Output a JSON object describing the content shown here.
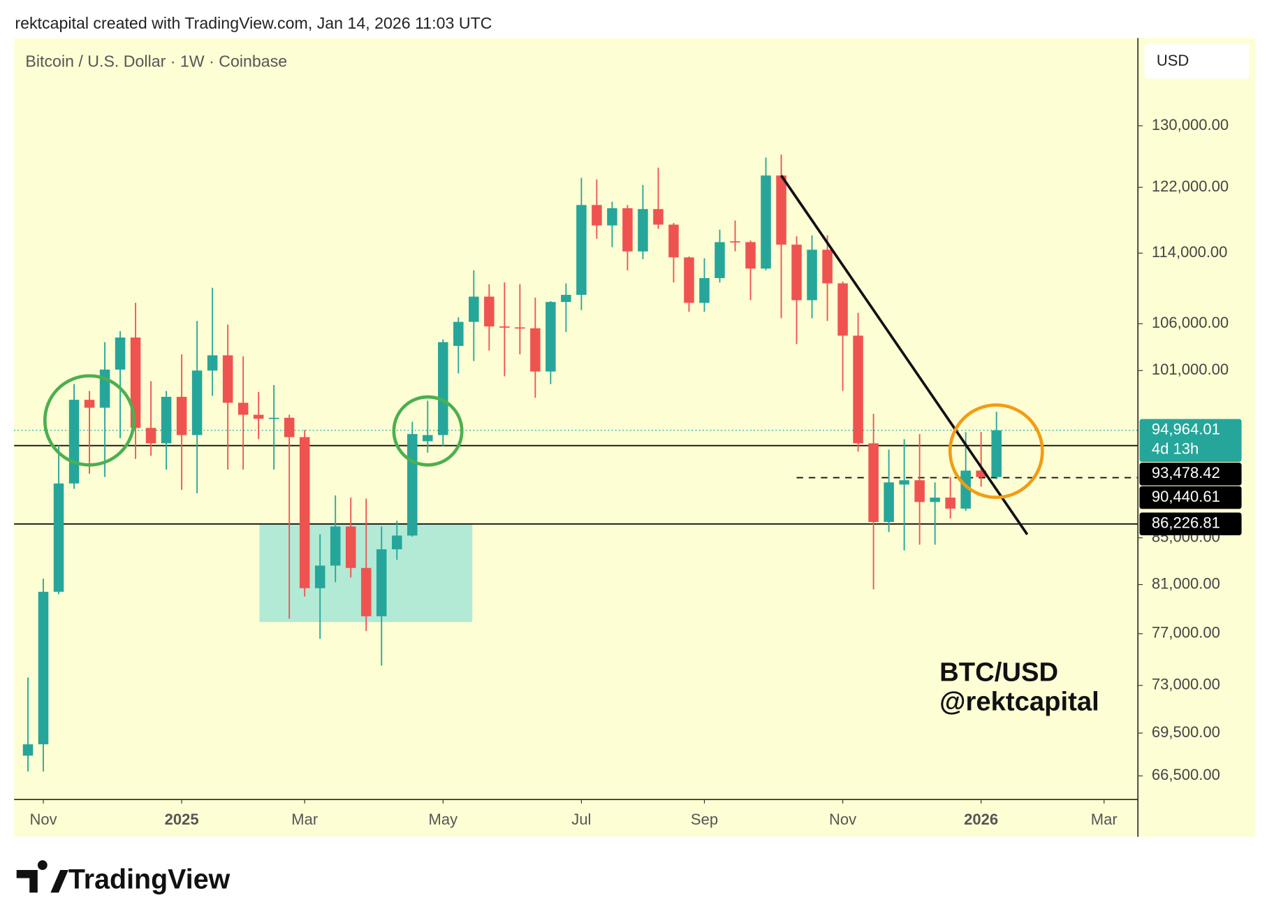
{
  "header": "rektcapital created with TradingView.com, Jan 14, 2026 11:03 UTC",
  "footer_logo": "TradingView",
  "chart_data": {
    "type": "candlestick",
    "title": "Bitcoin / U.S. Dollar · 1W · Coinbase",
    "currency": "USD",
    "annotation": [
      "BTC/USD",
      "@rektcapital"
    ],
    "up_color": "#26a69a",
    "down_color": "#ef5350",
    "log_scale": true,
    "xlim": [
      -0.9,
      72.2
    ],
    "ylim": [
      64900,
      142300
    ],
    "xticks": [
      {
        "value": 1,
        "label": "Nov"
      },
      {
        "value": 10,
        "label": "2025"
      },
      {
        "value": 18,
        "label": "Mar"
      },
      {
        "value": 27,
        "label": "May"
      },
      {
        "value": 36,
        "label": "Jul"
      },
      {
        "value": 44,
        "label": "Sep"
      },
      {
        "value": 53,
        "label": "Nov"
      },
      {
        "value": 62,
        "label": "2026"
      },
      {
        "value": 70,
        "label": "Mar"
      }
    ],
    "yticks": [
      {
        "value": 66500,
        "label": "66,500.00"
      },
      {
        "value": 69500,
        "label": "69,500.00"
      },
      {
        "value": 73000,
        "label": "73,000.00"
      },
      {
        "value": 77000,
        "label": "77,000.00"
      },
      {
        "value": 81000,
        "label": "81,000.00"
      },
      {
        "value": 85000,
        "label": "85,000.00"
      },
      {
        "value": 101000,
        "label": "101,000.00"
      },
      {
        "value": 106000,
        "label": "106,000.00"
      },
      {
        "value": 114000,
        "label": "114,000.00"
      },
      {
        "value": 122000,
        "label": "122,000.00"
      },
      {
        "value": 130000,
        "label": "130,000.00"
      }
    ],
    "candles": {
      "open": [
        67900,
        68700,
        80400,
        89900,
        98000,
        97200,
        101100,
        104500,
        95200,
        93700,
        98300,
        94500,
        101000,
        102600,
        97700,
        96500,
        96100,
        96200,
        94300,
        80700,
        82600,
        86000,
        82400,
        78400,
        84000,
        85200,
        93900,
        94500,
        103600,
        106200,
        109000,
        105700,
        105600,
        105500,
        100900,
        108400,
        109200,
        119800,
        117300,
        119400,
        114200,
        119300,
        117400,
        113500,
        108300,
        111100,
        115400,
        115300,
        112200,
        123500,
        115000,
        108600,
        114400,
        110500,
        104700,
        93700,
        86400,
        89800,
        90200,
        88200,
        88600,
        87600,
        91100,
        90500
      ],
      "high": [
        73600,
        81500,
        93500,
        99600,
        98900,
        104000,
        105200,
        108300,
        99900,
        98900,
        102700,
        106300,
        110000,
        105900,
        102500,
        98800,
        99500,
        96500,
        95000,
        85300,
        88800,
        88600,
        88500,
        86000,
        86500,
        95800,
        97900,
        104300,
        106700,
        112000,
        110400,
        110600,
        110400,
        108900,
        108500,
        110500,
        123200,
        123000,
        120200,
        119800,
        122300,
        124500,
        117600,
        113600,
        113400,
        116800,
        117900,
        115500,
        125800,
        126200,
        116000,
        116100,
        116100,
        110700,
        107200,
        96600,
        93100,
        94100,
        94600,
        90000,
        90500,
        94800,
        94800,
        96800
      ],
      "low": [
        66800,
        66800,
        80200,
        89400,
        90800,
        90500,
        94200,
        92200,
        92500,
        91200,
        89300,
        89000,
        98400,
        91200,
        91200,
        94100,
        91200,
        78200,
        80000,
        76600,
        81200,
        81600,
        77200,
        74500,
        83100,
        85100,
        92800,
        93400,
        100700,
        102000,
        103100,
        100400,
        102700,
        98200,
        99600,
        105100,
        107500,
        115700,
        114700,
        112000,
        113300,
        116900,
        110600,
        107300,
        107300,
        110600,
        114200,
        108600,
        112000,
        106600,
        103800,
        106600,
        106300,
        98900,
        92900,
        80600,
        85500,
        83900,
        84400,
        84400,
        86700,
        87400,
        89600,
        90300
      ],
      "close": [
        68700,
        80400,
        89900,
        98000,
        97200,
        101100,
        104500,
        95200,
        93700,
        98300,
        94500,
        101000,
        102600,
        97700,
        96500,
        96100,
        96200,
        94300,
        80700,
        82600,
        86000,
        82400,
        78400,
        84000,
        85200,
        94600,
        94500,
        104000,
        106200,
        109000,
        105700,
        105600,
        105500,
        100900,
        108400,
        109200,
        119800,
        117300,
        119400,
        114200,
        119300,
        117400,
        113500,
        108300,
        111100,
        115300,
        115300,
        112200,
        123500,
        115000,
        108600,
        114400,
        110500,
        104700,
        93700,
        86400,
        90000,
        90200,
        88200,
        88600,
        87600,
        91100,
        90500,
        94964.01
      ]
    },
    "current_price": {
      "value": 94964.01,
      "label": "94,964.01",
      "countdown": "4d 13h"
    },
    "price_lines": [
      {
        "value": 93478.42,
        "label": "93,478.42",
        "style": "solid"
      },
      {
        "value": 90440.61,
        "label": "90,440.61",
        "style": "dashed",
        "from_index": 50
      },
      {
        "value": 86226.81,
        "label": "86,226.81",
        "style": "solid"
      }
    ],
    "trendline": {
      "x": [
        49,
        65
      ],
      "y": [
        123500,
        85300
      ]
    }
  }
}
